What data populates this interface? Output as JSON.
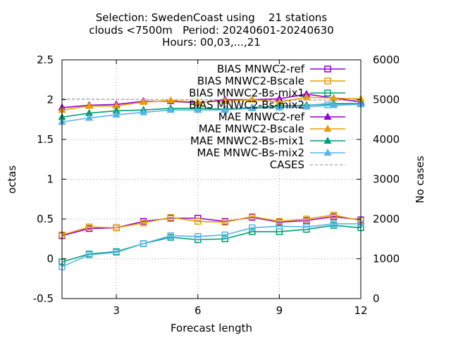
{
  "chart_data": {
    "type": "line",
    "title_lines": [
      "Selection: SwedenCoast using    21 stations",
      "clouds <7500m   Period: 20240601-20240630",
      "Hours: 00,03,...,21"
    ],
    "xlabel": "Forecast length",
    "ylabel": "octas",
    "y2label": "No cases",
    "xlim": [
      1,
      12
    ],
    "ylim": [
      -0.5,
      2.5
    ],
    "y2lim": [
      0,
      6000
    ],
    "x_ticks": [
      3,
      6,
      9,
      12
    ],
    "y_ticks": [
      -0.5,
      0,
      0.5,
      1,
      1.5,
      2,
      2.5
    ],
    "y_tick_labels": [
      "-0.5",
      "0",
      "0.5",
      "1",
      "1.5",
      "2",
      "2.5"
    ],
    "y2_ticks": [
      0,
      1000,
      2000,
      3000,
      4000,
      5000,
      6000
    ],
    "grid": true,
    "legend_position": "top-right",
    "x": [
      1,
      2,
      3,
      4,
      5,
      6,
      7,
      8,
      9,
      10,
      11,
      12
    ],
    "series": [
      {
        "name": "BIAS MNWC2-ref",
        "axis": "y",
        "color": "#9400d3",
        "marker": "square-open",
        "values": [
          0.29,
          0.38,
          0.39,
          0.47,
          0.51,
          0.51,
          0.47,
          0.52,
          0.46,
          0.48,
          0.53,
          0.49
        ]
      },
      {
        "name": "BIAS MNWC2-Bscale",
        "axis": "y",
        "color": "#e69f00",
        "marker": "square-open",
        "values": [
          0.3,
          0.4,
          0.39,
          0.45,
          0.52,
          0.47,
          0.46,
          0.53,
          0.47,
          0.5,
          0.55,
          0.48
        ]
      },
      {
        "name": "BIAS MNWC2-Bs-mix1",
        "axis": "y",
        "color": "#009e73",
        "marker": "square-open",
        "values": [
          -0.04,
          0.06,
          0.09,
          0.19,
          0.27,
          0.24,
          0.25,
          0.34,
          0.34,
          0.37,
          0.42,
          0.39
        ]
      },
      {
        "name": "BIAS MNWC2-Bs-mix2",
        "axis": "y",
        "color": "#56b4e9",
        "marker": "square-open",
        "values": [
          -0.1,
          0.05,
          0.08,
          0.19,
          0.29,
          0.28,
          0.3,
          0.39,
          0.41,
          0.4,
          0.44,
          0.44
        ]
      },
      {
        "name": "MAE MNWC2-ref",
        "axis": "y",
        "color": "#9400d3",
        "marker": "triangle-filled",
        "values": [
          1.9,
          1.93,
          1.94,
          1.98,
          1.98,
          1.96,
          2.0,
          2.0,
          2.01,
          2.07,
          2.02,
          1.97
        ]
      },
      {
        "name": "MAE MNWC2-Bscale",
        "axis": "y",
        "color": "#e69f00",
        "marker": "triangle-filled",
        "values": [
          1.87,
          1.92,
          1.92,
          1.97,
          1.99,
          1.97,
          1.98,
          2.0,
          1.97,
          2.03,
          2.02,
          2.01
        ]
      },
      {
        "name": "MAE MNWC2-Bs-mix1",
        "axis": "y",
        "color": "#009e73",
        "marker": "triangle-filled",
        "values": [
          1.78,
          1.83,
          1.86,
          1.87,
          1.89,
          1.89,
          1.88,
          1.9,
          1.92,
          1.93,
          1.95,
          1.95
        ]
      },
      {
        "name": "MAE MNWC-Bs-mix2",
        "axis": "y",
        "color": "#56b4e9",
        "marker": "triangle-filled",
        "values": [
          1.72,
          1.77,
          1.81,
          1.84,
          1.87,
          1.87,
          1.87,
          1.89,
          1.9,
          1.91,
          1.93,
          1.94
        ]
      },
      {
        "name": "CASES",
        "axis": "y2",
        "color": "#a0a0a0",
        "marker": "none",
        "dashed": true,
        "values": [
          5020,
          5015,
          5010,
          5005,
          5000,
          5000,
          4995,
          4995,
          4990,
          4990,
          4985,
          4980
        ]
      }
    ]
  }
}
